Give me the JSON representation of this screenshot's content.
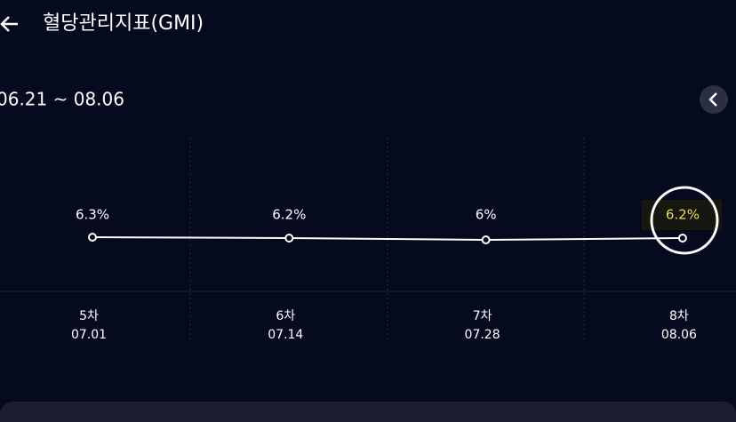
{
  "header": {
    "title": "혈당관리지표(GMI)"
  },
  "date_range": "06.21 ~ 08.06",
  "chart_data": {
    "type": "line",
    "categories": [
      "5차",
      "6차",
      "7차",
      "8차"
    ],
    "dates": [
      "07.01",
      "07.14",
      "07.28",
      "08.06"
    ],
    "values": [
      6.3,
      6.2,
      6,
      6.2
    ],
    "value_labels": [
      "6.3%",
      "6.2%",
      "6%",
      "6.2%"
    ],
    "color": "#ffffff"
  }
}
